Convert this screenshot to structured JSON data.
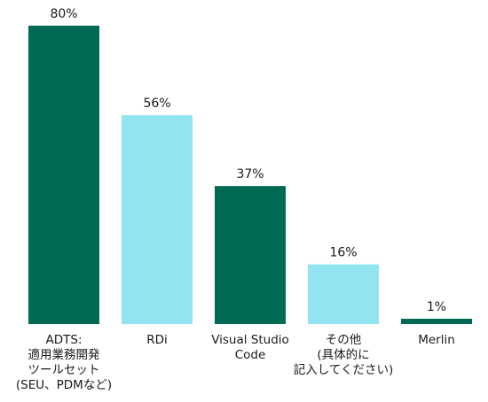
{
  "chart_data": {
    "type": "bar",
    "categories": [
      [
        "ADTS:",
        "適用業務開発",
        "ツールセット",
        "(SEU、PDMなど)"
      ],
      [
        "RDi"
      ],
      [
        "Visual Studio",
        "Code"
      ],
      [
        "その他",
        "(具体的に",
        "記入してください)"
      ],
      [
        "Merlin"
      ]
    ],
    "values": [
      80,
      56,
      37,
      16,
      1
    ],
    "value_labels": [
      "80%",
      "56%",
      "37%",
      "16%",
      "1%"
    ],
    "ylim": [
      0,
      80
    ],
    "grid": false,
    "legend": "none",
    "colors": [
      "#006b54",
      "#91e4f0",
      "#006b54",
      "#91e4f0",
      "#006b54"
    ]
  }
}
